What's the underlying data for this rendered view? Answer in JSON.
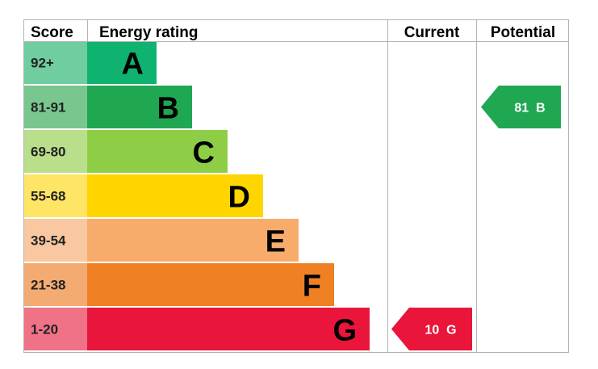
{
  "headers": {
    "score": "Score",
    "energy_rating": "Energy rating",
    "current": "Current",
    "potential": "Potential"
  },
  "chart_data": {
    "type": "bar",
    "bands": [
      {
        "letter": "A",
        "range": "92+",
        "color": "#0fb36f",
        "score_bg": "#6fcda0"
      },
      {
        "letter": "B",
        "range": "81-91",
        "color": "#1fa752",
        "score_bg": "#79c68f"
      },
      {
        "letter": "C",
        "range": "69-80",
        "color": "#8dce46",
        "score_bg": "#badf8b"
      },
      {
        "letter": "D",
        "range": "55-68",
        "color": "#ffd500",
        "score_bg": "#ffe566"
      },
      {
        "letter": "E",
        "range": "39-54",
        "color": "#f7ac6b",
        "score_bg": "#fac8a0"
      },
      {
        "letter": "F",
        "range": "21-38",
        "color": "#ef8023",
        "score_bg": "#f4ab71"
      },
      {
        "letter": "G",
        "range": "1-20",
        "color": "#e9153b",
        "score_bg": "#f07287"
      }
    ],
    "current": {
      "value": 10,
      "band": "G",
      "label": "10  G",
      "color": "#e9153b"
    },
    "potential": {
      "value": 81,
      "band": "B",
      "label": "81  B",
      "color": "#1fa752"
    }
  }
}
